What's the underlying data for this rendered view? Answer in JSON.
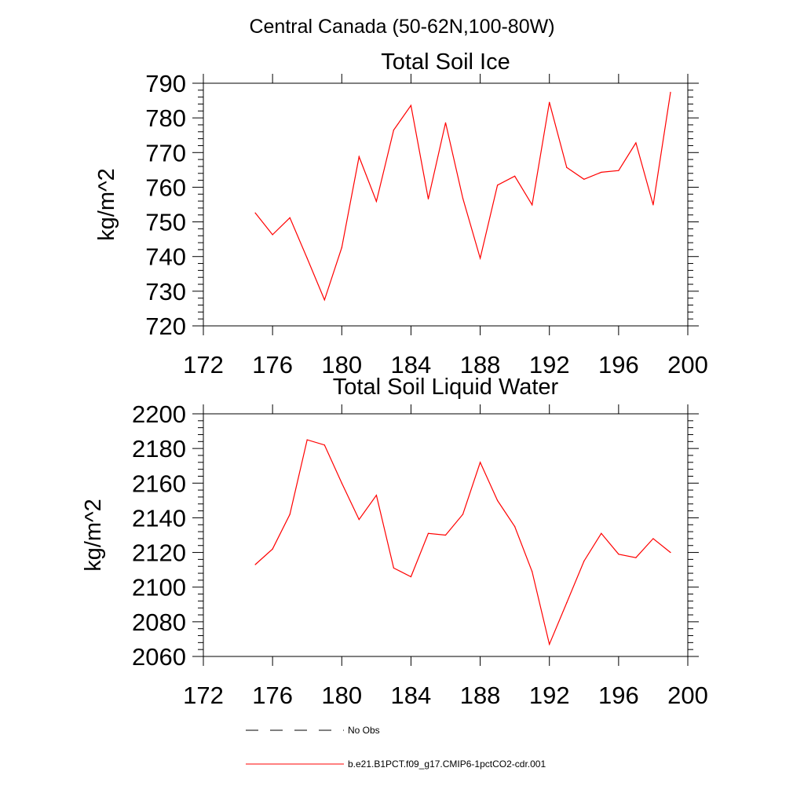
{
  "figure": {
    "suptitle": "Central Canada (50-62N,100-80W)"
  },
  "legend": {
    "entries": [
      {
        "label": "No Obs",
        "color": "#000000",
        "dash": true
      },
      {
        "label": "b.e21.B1PCT.f09_g17.CMIP6-1pctCO2-cdr.001",
        "color": "#ff0000",
        "dash": false
      }
    ]
  },
  "chart_data": [
    {
      "type": "line",
      "title": "Total Soil Ice",
      "xlabel": "",
      "ylabel": "kg/m^2",
      "xlim": [
        172,
        200
      ],
      "ylim": [
        720,
        790
      ],
      "xticks": [
        172,
        176,
        180,
        184,
        188,
        192,
        196,
        200
      ],
      "yticks": [
        720,
        730,
        740,
        750,
        760,
        770,
        780,
        790
      ],
      "grid": false,
      "series": [
        {
          "name": "b.e21.B1PCT.f09_g17.CMIP6-1pctCO2-cdr.001",
          "color": "#ff0000",
          "x": [
            175,
            176,
            177,
            178,
            179,
            180,
            181,
            182,
            183,
            184,
            185,
            186,
            187,
            188,
            189,
            190,
            191,
            192,
            193,
            194,
            195,
            196,
            197,
            198,
            199
          ],
          "y": [
            752.6,
            746.3,
            751.2,
            739.5,
            727.5,
            742.6,
            768.8,
            755.9,
            776.5,
            783.6,
            756.6,
            778.6,
            756.8,
            739.5,
            760.6,
            763.2,
            754.9,
            784.5,
            765.7,
            762.3,
            764.3,
            764.8,
            772.8,
            754.9,
            787.4
          ]
        }
      ]
    },
    {
      "type": "line",
      "title": "Total Soil Liquid Water",
      "xlabel": "",
      "ylabel": "kg/m^2",
      "xlim": [
        172,
        200
      ],
      "ylim": [
        2060,
        2200
      ],
      "xticks": [
        172,
        176,
        180,
        184,
        188,
        192,
        196,
        200
      ],
      "yticks": [
        2060,
        2080,
        2100,
        2120,
        2140,
        2160,
        2180,
        2200
      ],
      "grid": false,
      "series": [
        {
          "name": "b.e21.B1PCT.f09_g17.CMIP6-1pctCO2-cdr.001",
          "color": "#ff0000",
          "x": [
            175,
            176,
            177,
            178,
            179,
            180,
            181,
            182,
            183,
            184,
            185,
            186,
            187,
            188,
            189,
            190,
            191,
            192,
            193,
            194,
            195,
            196,
            197,
            198,
            199
          ],
          "y": [
            2113,
            2122,
            2142,
            2185,
            2182,
            2160,
            2139,
            2153,
            2111,
            2106,
            2131,
            2130,
            2142,
            2172,
            2150,
            2135,
            2109,
            2067,
            2091,
            2115,
            2131,
            2119,
            2117,
            2128,
            2120
          ]
        }
      ]
    }
  ]
}
